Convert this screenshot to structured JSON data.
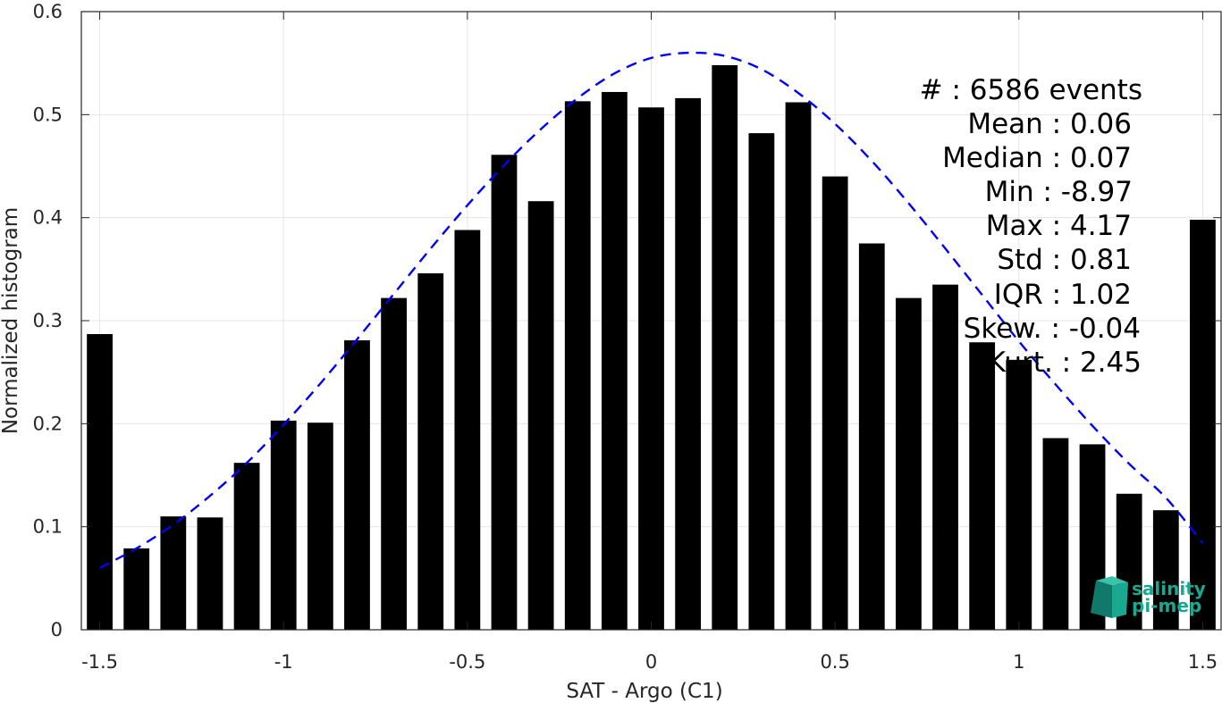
{
  "chart_data": {
    "type": "bar",
    "xlabel": "SAT - Argo (C1)",
    "ylabel": "Normalized histogram",
    "xlim": [
      -1.55,
      1.55
    ],
    "ylim": [
      0,
      0.6
    ],
    "grid": true,
    "x_ticks": [
      -1.5,
      -1,
      -0.5,
      0,
      0.5,
      1,
      1.5
    ],
    "x_tick_labels": [
      "-1.5",
      "-1",
      "-0.5",
      "0",
      "0.5",
      "1",
      "1.5"
    ],
    "y_ticks": [
      0,
      0.1,
      0.2,
      0.3,
      0.4,
      0.5,
      0.6
    ],
    "y_tick_labels": [
      "0",
      "0.1",
      "0.2",
      "0.3",
      "0.4",
      "0.5",
      "0.6"
    ],
    "bar_color": "#000000",
    "bar_width": 0.07,
    "bins": [
      -1.5,
      -1.4,
      -1.3,
      -1.2,
      -1.1,
      -1.0,
      -0.9,
      -0.8,
      -0.7,
      -0.6,
      -0.5,
      -0.4,
      -0.3,
      -0.2,
      -0.1,
      0.0,
      0.1,
      0.2,
      0.3,
      0.4,
      0.5,
      0.6,
      0.7,
      0.8,
      0.9,
      1.0,
      1.1,
      1.2,
      1.3,
      1.4,
      1.5
    ],
    "values": [
      0.287,
      0.079,
      0.11,
      0.109,
      0.162,
      0.203,
      0.201,
      0.281,
      0.322,
      0.346,
      0.388,
      0.461,
      0.416,
      0.513,
      0.522,
      0.507,
      0.516,
      0.548,
      0.482,
      0.512,
      0.44,
      0.375,
      0.322,
      0.335,
      0.279,
      0.262,
      0.186,
      0.18,
      0.132,
      0.116,
      0.398
    ],
    "fit": {
      "style": "dashed",
      "color": "#0000ff",
      "x": [
        -1.5,
        -1.4,
        -1.3,
        -1.2,
        -1.1,
        -1.0,
        -0.9,
        -0.8,
        -0.7,
        -0.6,
        -0.5,
        -0.4,
        -0.3,
        -0.2,
        -0.1,
        0.0,
        0.1,
        0.2,
        0.3,
        0.4,
        0.5,
        0.6,
        0.7,
        0.8,
        0.9,
        1.0,
        1.1,
        1.2,
        1.3,
        1.4,
        1.5
      ],
      "y": [
        0.06,
        0.079,
        0.102,
        0.13,
        0.162,
        0.199,
        0.239,
        0.282,
        0.326,
        0.37,
        0.412,
        0.451,
        0.486,
        0.516,
        0.54,
        0.555,
        0.56,
        0.557,
        0.544,
        0.521,
        0.491,
        0.455,
        0.414,
        0.37,
        0.325,
        0.28,
        0.238,
        0.198,
        0.161,
        0.128,
        0.084
      ]
    }
  },
  "stats": {
    "lines": [
      "#  : 6586 events",
      "Mean : 0.06",
      "Median : 0.07",
      "Min : -8.97",
      "Max : 4.17",
      "Std : 0.81",
      "IQR : 1.02",
      "Skew. : -0.04",
      "Kurt. : 2.45"
    ]
  },
  "logo": {
    "line1": "salinity",
    "line2": "pi-mep",
    "color": "#1aa890"
  }
}
